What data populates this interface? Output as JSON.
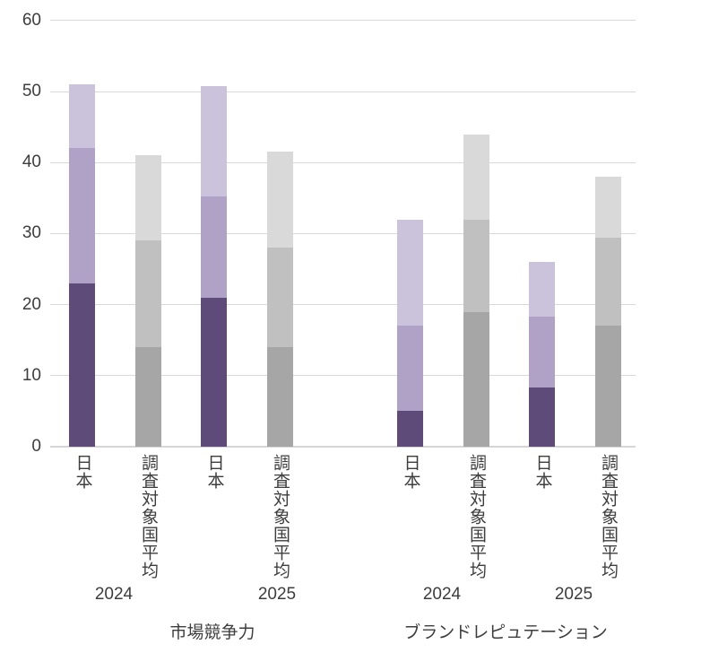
{
  "chart_data": {
    "type": "bar",
    "stacked": true,
    "orientation": "vertical",
    "title": "",
    "xlabel": "",
    "ylabel": "",
    "ylim": [
      0,
      60
    ],
    "yticks": [
      0,
      10,
      20,
      30,
      40,
      50,
      60
    ],
    "grid": true,
    "legend": "none",
    "palettes": {
      "japan_purple": {
        "bottom": "#5F4B7A",
        "middle": "#B0A1C7",
        "top": "#CBC3DC"
      },
      "average_gray": {
        "bottom": "#A6A6A6",
        "middle": "#C0C0C0",
        "top": "#D9D9D9"
      }
    },
    "segment_order": [
      "bottom",
      "middle",
      "top"
    ],
    "groups": [
      {
        "label": "市場競争力",
        "years": [
          {
            "label": "2024",
            "bars": [
              {
                "category": "日本",
                "palette": "japan_purple",
                "segments": [
                  23,
                  19,
                  9
                ],
                "total": 51
              },
              {
                "category": "調査対象国平均",
                "palette": "average_gray",
                "segments": [
                  14,
                  15,
                  12
                ],
                "total": 41
              }
            ]
          },
          {
            "label": "2025",
            "bars": [
              {
                "category": "日本",
                "palette": "japan_purple",
                "segments": [
                  21,
                  14.2,
                  15.5
                ],
                "total": 50.7
              },
              {
                "category": "調査対象国平均",
                "palette": "average_gray",
                "segments": [
                  14,
                  14,
                  13.6
                ],
                "total": 41.6
              }
            ]
          }
        ]
      },
      {
        "label": "ブランドレピュテーション",
        "years": [
          {
            "label": "2024",
            "bars": [
              {
                "category": "日本",
                "palette": "japan_purple",
                "segments": [
                  5,
                  12,
                  15
                ],
                "total": 32
              },
              {
                "category": "調査対象国平均",
                "palette": "average_gray",
                "segments": [
                  19,
                  13,
                  12
                ],
                "total": 44
              }
            ]
          },
          {
            "label": "2025",
            "bars": [
              {
                "category": "日本",
                "palette": "japan_purple",
                "segments": [
                  8.3,
                  10,
                  7.7
                ],
                "total": 26
              },
              {
                "category": "調査対象国平均",
                "palette": "average_gray",
                "segments": [
                  17,
                  12.4,
                  8.6
                ],
                "total": 38
              }
            ]
          }
        ]
      }
    ],
    "colors": {
      "gridline": "#D9D9D9",
      "axis_line": "#D6D6D6",
      "axis_text": "#3D3D3D",
      "background": "#FFFFFF"
    }
  }
}
